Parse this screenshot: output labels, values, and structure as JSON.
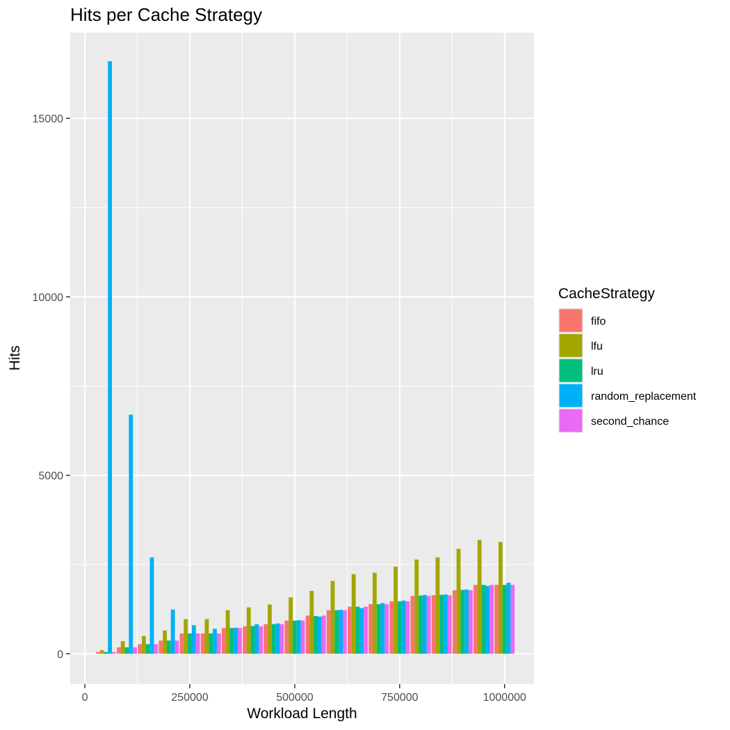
{
  "chart_data": {
    "type": "bar",
    "title": "Hits per Cache Strategy",
    "xlabel": "Workload Length",
    "ylabel": "Hits",
    "xlim": [
      -35000,
      1070000
    ],
    "ylim": [
      -850,
      17400
    ],
    "x_ticks": [
      0,
      250000,
      500000,
      750000,
      1000000
    ],
    "x_tick_labels": [
      "0",
      "250000",
      "500000",
      "750000",
      "1000000"
    ],
    "y_ticks": [
      0,
      5000,
      10000,
      15000
    ],
    "y_tick_labels": [
      "0",
      "5000",
      "10000",
      "15000"
    ],
    "grid": true,
    "legend": {
      "title": "CacheStrategy",
      "position": "right"
    },
    "x": [
      50000,
      100000,
      150000,
      200000,
      250000,
      300000,
      350000,
      400000,
      450000,
      500000,
      550000,
      600000,
      650000,
      700000,
      750000,
      800000,
      850000,
      900000,
      950000,
      1000000
    ],
    "bar_width_per_group": 48000,
    "series": [
      {
        "name": "fifo",
        "color": "#F8766D",
        "values": [
          50,
          180,
          270,
          370,
          570,
          570,
          720,
          770,
          830,
          930,
          1070,
          1220,
          1320,
          1390,
          1470,
          1620,
          1640,
          1780,
          1930,
          1930
        ]
      },
      {
        "name": "lfu",
        "color": "#A3A500",
        "values": [
          100,
          350,
          500,
          650,
          970,
          970,
          1220,
          1300,
          1380,
          1580,
          1760,
          2040,
          2230,
          2270,
          2440,
          2640,
          2700,
          2940,
          3190,
          3130
        ]
      },
      {
        "name": "lru",
        "color": "#00BF7D",
        "values": [
          50,
          180,
          270,
          370,
          570,
          570,
          720,
          780,
          830,
          930,
          1060,
          1220,
          1320,
          1390,
          1470,
          1630,
          1650,
          1790,
          1930,
          1930
        ]
      },
      {
        "name": "random_replacement",
        "color": "#00B0F6",
        "values": [
          16600,
          6700,
          2700,
          1240,
          800,
          700,
          730,
          830,
          850,
          940,
          1040,
          1230,
          1280,
          1420,
          1490,
          1650,
          1660,
          1800,
          1900,
          1990
        ]
      },
      {
        "name": "second_chance",
        "color": "#E76BF3",
        "values": [
          50,
          180,
          270,
          370,
          570,
          570,
          720,
          770,
          830,
          930,
          1070,
          1220,
          1320,
          1390,
          1470,
          1620,
          1640,
          1780,
          1930,
          1930
        ]
      }
    ]
  }
}
